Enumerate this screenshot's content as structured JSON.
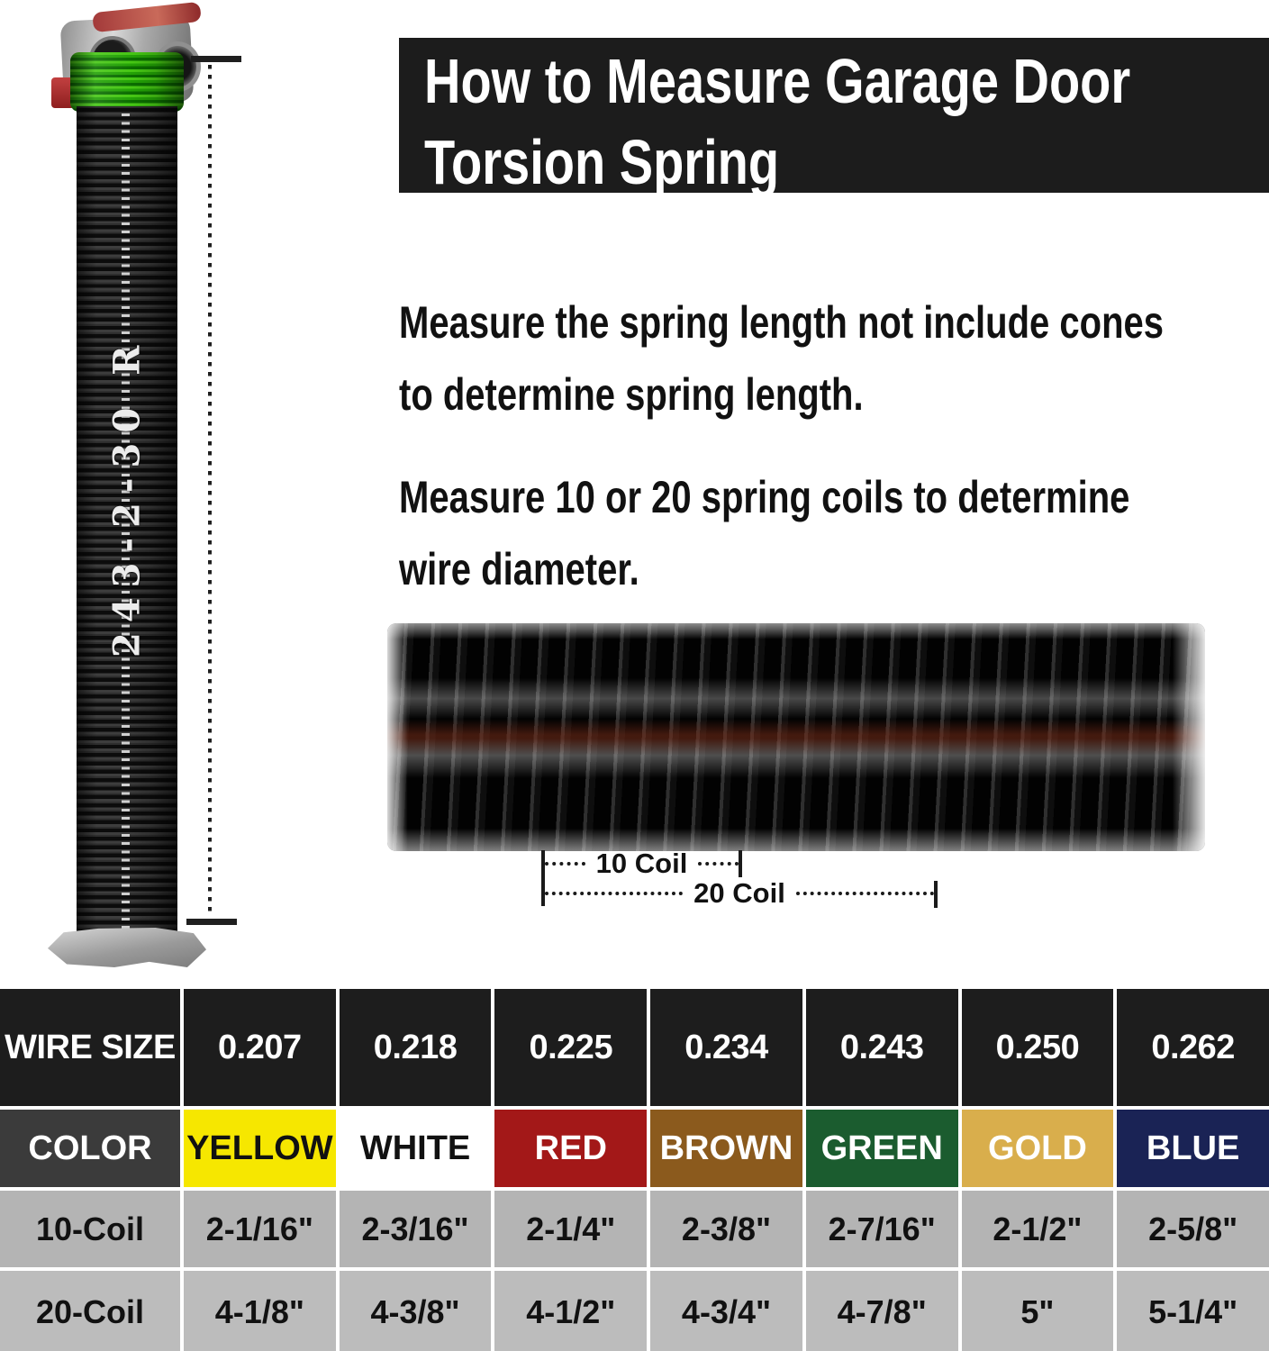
{
  "banner": {
    "title_line1": "How to Measure Garage Door",
    "title_line2": "Torsion Spring"
  },
  "instructions": {
    "p1_line1": "Measure the spring length not include cones",
    "p1_line2": "to determine spring length.",
    "p2_line1": "Measure 10 or 20 spring coils to determine",
    "p2_line2": "wire diameter."
  },
  "spring": {
    "label": "243-2-30 R",
    "top_coil_color": "#23A106"
  },
  "coil_annotation": {
    "ten_coil": "10 Coil",
    "twenty_coil": "20 Coil"
  },
  "table": {
    "wire": {
      "label": "WIRE SIZE",
      "values": [
        "0.207",
        "0.218",
        "0.225",
        "0.234",
        "0.243",
        "0.250",
        "0.262"
      ]
    },
    "colors": {
      "label": "COLOR",
      "cells": [
        {
          "name": "YELLOW",
          "bg": "#F6E700",
          "fg": "#111111"
        },
        {
          "name": "WHITE",
          "bg": "#FFFFFF",
          "fg": "#111111"
        },
        {
          "name": "RED",
          "bg": "#A31818",
          "fg": "#FFFFFF"
        },
        {
          "name": "BROWN",
          "bg": "#8B5A1D",
          "fg": "#FFFFFF"
        },
        {
          "name": "GREEN",
          "bg": "#1B5C2F",
          "fg": "#FFFFFF"
        },
        {
          "name": "GOLD",
          "bg": "#D9AE4C",
          "fg": "#FFFFFF"
        },
        {
          "name": "BLUE",
          "bg": "#1A2355",
          "fg": "#FFFFFF"
        }
      ]
    },
    "coil10": {
      "label": "10-Coil",
      "values": [
        "2-1/16\"",
        "2-3/16\"",
        "2-1/4\"",
        "2-3/8\"",
        "2-7/16\"",
        "2-1/2\"",
        "2-5/8\""
      ]
    },
    "coil20": {
      "label": "20-Coil",
      "values": [
        "4-1/8\"",
        "4-3/8\"",
        "4-1/2\"",
        "4-3/4\"",
        "4-7/8\"",
        "5\"",
        "5-1/4\""
      ]
    }
  }
}
